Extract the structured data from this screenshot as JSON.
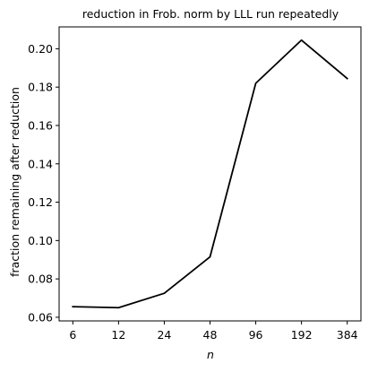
{
  "chart_data": {
    "type": "line",
    "title": "reduction in Frob. norm by LLL run repeatedly",
    "xlabel": "n",
    "ylabel": "fraction remaining after reduction",
    "x_scale": "log2",
    "x": [
      6,
      12,
      24,
      48,
      96,
      192,
      384
    ],
    "x_tick_labels": [
      "6",
      "12",
      "24",
      "48",
      "96",
      "192",
      "384"
    ],
    "series": [
      {
        "values": [
          0.0655,
          0.065,
          0.0725,
          0.0915,
          0.182,
          0.2045,
          0.1845
        ],
        "color": "#000000"
      }
    ],
    "y_ticks": [
      0.06,
      0.08,
      0.1,
      0.12,
      0.14,
      0.16,
      0.18,
      0.2
    ],
    "y_tick_labels": [
      "0.06",
      "0.08",
      "0.10",
      "0.12",
      "0.14",
      "0.16",
      "0.18",
      "0.20"
    ],
    "ylim": [
      0.0581,
      0.2114
    ],
    "grid": false,
    "legend": false
  }
}
